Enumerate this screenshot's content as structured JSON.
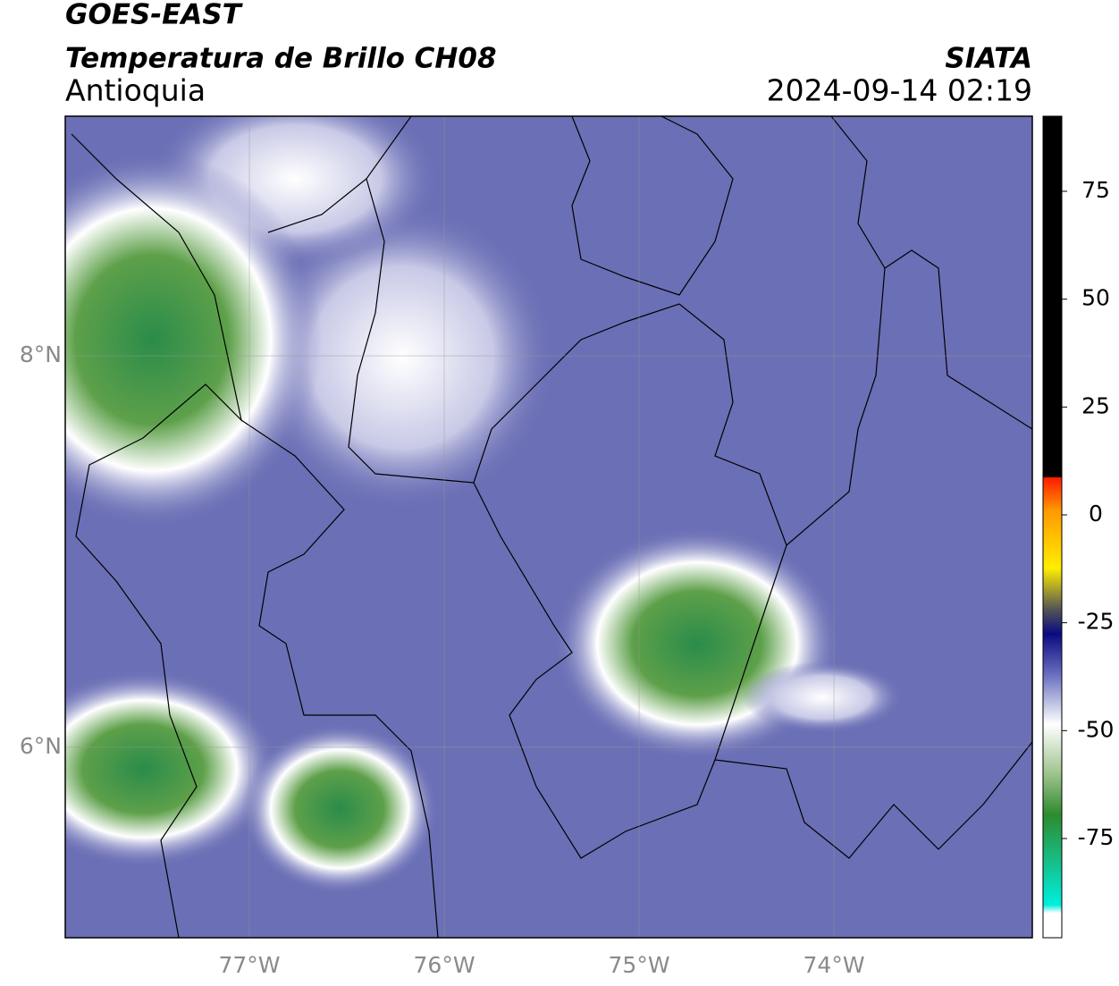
{
  "header": {
    "title": "GOES-EAST",
    "subtitle": "Temperatura de Brillo CH08",
    "region": "Antioquia",
    "source": "SIATA",
    "datetime": "2024-09-14 02:19"
  },
  "map": {
    "xlim": [
      -77.945,
      -72.982
    ],
    "ylim": [
      5.027,
      9.224
    ],
    "xticks": [
      {
        "value": -77,
        "label": "77°W"
      },
      {
        "value": -76,
        "label": "76°W"
      },
      {
        "value": -75,
        "label": "75°W"
      },
      {
        "value": -74,
        "label": "74°W"
      }
    ],
    "yticks": [
      {
        "value": 6,
        "label": "6°N"
      },
      {
        "value": 8,
        "label": "8°N"
      }
    ]
  },
  "colorbar": {
    "lim": [
      -98,
      92.4
    ],
    "ticks": [
      75,
      50,
      25,
      0,
      -25,
      -50,
      -75
    ]
  }
}
